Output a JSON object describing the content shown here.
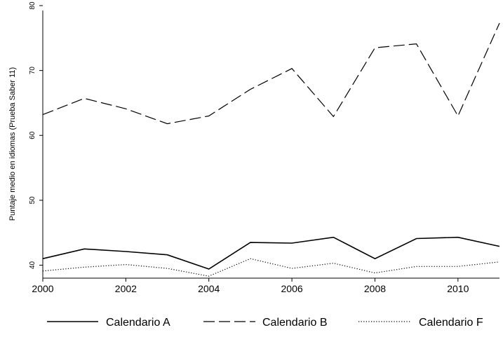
{
  "chart_data": {
    "type": "line",
    "ylabel": "Puntaje medio en idiomas (Prueba Saber 11)",
    "x": [
      2000,
      2001,
      2002,
      2003,
      2004,
      2005,
      2006,
      2007,
      2008,
      2009,
      2010,
      2011
    ],
    "xticks": [
      2000,
      2002,
      2004,
      2006,
      2008,
      2010
    ],
    "yticks": [
      40,
      50,
      60,
      70,
      80
    ],
    "xlim": [
      2000,
      2011
    ],
    "ylim": [
      38,
      80
    ],
    "grid": false,
    "legend_position": "bottom",
    "series": [
      {
        "name": "Calendario A",
        "style": "solid",
        "values": [
          41.0,
          42.5,
          42.1,
          41.6,
          39.4,
          43.5,
          43.4,
          44.3,
          41.0,
          44.1,
          44.3,
          42.9
        ]
      },
      {
        "name": "Calendario B",
        "style": "dashed",
        "values": [
          63.2,
          65.7,
          64.1,
          61.8,
          63.0,
          67.1,
          70.3,
          62.9,
          73.5,
          74.1,
          63.0,
          77.3
        ]
      },
      {
        "name": "Calendario F",
        "style": "dotted",
        "values": [
          39.1,
          39.7,
          40.1,
          39.5,
          38.3,
          41.0,
          39.5,
          40.3,
          38.8,
          39.8,
          39.8,
          40.5
        ]
      }
    ]
  }
}
